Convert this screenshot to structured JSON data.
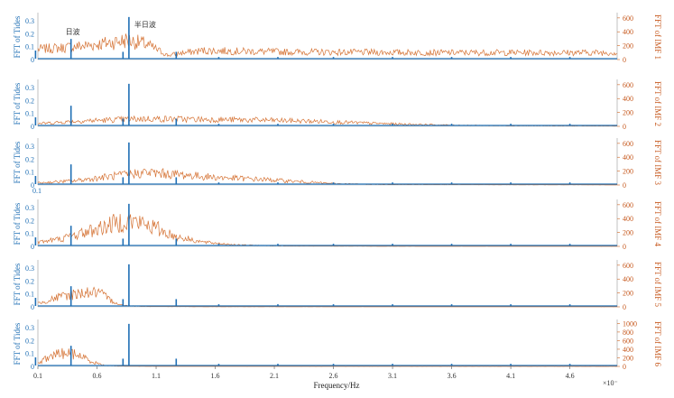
{
  "chart_data": {
    "type": "line",
    "xlabel": "Frequency/Hz",
    "x_scale_note": "×10⁻",
    "x_ticks": [
      "0.1",
      "0.6",
      "1.1",
      "1.6",
      "2.1",
      "2.6",
      "3.1",
      "3.6",
      "4.1",
      "4.6"
    ],
    "xlim": [
      0.1,
      5.0
    ],
    "extra_label": "0.1",
    "tide_peak_labels": [
      "日波",
      "半日波"
    ],
    "tide_series": {
      "name": "FFT of Tides",
      "peaks": [
        {
          "x": 0.08,
          "y": 0.07
        },
        {
          "x": 0.38,
          "y": 0.16
        },
        {
          "x": 0.82,
          "y": 0.06
        },
        {
          "x": 0.87,
          "y": 0.33
        },
        {
          "x": 1.27,
          "y": 0.06
        },
        {
          "x": 1.63,
          "y": 0.02
        },
        {
          "x": 2.13,
          "y": 0.02
        },
        {
          "x": 2.6,
          "y": 0.02
        },
        {
          "x": 3.1,
          "y": 0.02
        },
        {
          "x": 3.6,
          "y": 0.02
        },
        {
          "x": 4.1,
          "y": 0.02
        },
        {
          "x": 4.6,
          "y": 0.02
        }
      ]
    },
    "panels": [
      {
        "left_label": "FFT of Tides",
        "right_label": "FFT of IMF 1",
        "left_ticks": [
          "0.3",
          "0.2",
          "0.1",
          "0"
        ],
        "right_ticks": [
          "600",
          "400",
          "200",
          "0"
        ],
        "rmax": 650,
        "imf_shape": [
          [
            0.1,
            150
          ],
          [
            0.3,
            170
          ],
          [
            0.5,
            200
          ],
          [
            0.7,
            240
          ],
          [
            0.85,
            280
          ],
          [
            1.0,
            230
          ],
          [
            1.1,
            150
          ],
          [
            1.2,
            60
          ],
          [
            1.3,
            90
          ],
          [
            1.5,
            130
          ],
          [
            1.8,
            120
          ],
          [
            2.2,
            110
          ],
          [
            2.8,
            105
          ],
          [
            3.5,
            100
          ],
          [
            4.2,
            100
          ],
          [
            5.0,
            100
          ]
        ]
      },
      {
        "left_label": "FFT of Tides",
        "right_label": "FFT of IMF 2",
        "left_ticks": [
          "0.3",
          "0.2",
          "0.1",
          "0"
        ],
        "right_ticks": [
          "600",
          "400",
          "200",
          "0"
        ],
        "rmax": 650,
        "imf_shape": [
          [
            0.1,
            40
          ],
          [
            0.5,
            80
          ],
          [
            1.0,
            110
          ],
          [
            1.5,
            100
          ],
          [
            2.0,
            90
          ],
          [
            2.5,
            70
          ],
          [
            3.0,
            40
          ],
          [
            3.5,
            20
          ],
          [
            4.0,
            10
          ],
          [
            5.0,
            5
          ]
        ]
      },
      {
        "left_label": "FFT of Tides",
        "right_label": "FFT of IMF 3",
        "left_ticks": [
          "0.3",
          "0.2",
          "0.1",
          "0"
        ],
        "right_ticks": [
          "600",
          "400",
          "200",
          "0"
        ],
        "rmax": 650,
        "imf_shape": [
          [
            0.1,
            30
          ],
          [
            0.4,
            60
          ],
          [
            0.7,
            120
          ],
          [
            1.0,
            180
          ],
          [
            1.3,
            150
          ],
          [
            1.6,
            110
          ],
          [
            2.0,
            80
          ],
          [
            2.3,
            50
          ],
          [
            2.6,
            20
          ],
          [
            3.0,
            8
          ],
          [
            4.0,
            4
          ],
          [
            5.0,
            2
          ]
        ]
      },
      {
        "left_label": "FFT of Tides",
        "right_label": "FFT of IMF 4",
        "left_ticks": [
          "0.3",
          "0.2",
          "0.1",
          "0"
        ],
        "right_ticks": [
          "600",
          "400",
          "200",
          "0"
        ],
        "rmax": 650,
        "imf_shape": [
          [
            0.1,
            60
          ],
          [
            0.3,
            110
          ],
          [
            0.6,
            250
          ],
          [
            0.85,
            380
          ],
          [
            1.05,
            300
          ],
          [
            1.25,
            150
          ],
          [
            1.5,
            60
          ],
          [
            1.8,
            20
          ],
          [
            2.2,
            6
          ],
          [
            3.0,
            2
          ],
          [
            5.0,
            1
          ]
        ]
      },
      {
        "left_label": "FFT of Tides",
        "right_label": "FFT of IMF 5",
        "left_ticks": [
          "0.3",
          "0.2",
          "0.1",
          "0"
        ],
        "right_ticks": [
          "600",
          "400",
          "200",
          "0"
        ],
        "rmax": 650,
        "imf_shape": [
          [
            0.1,
            50
          ],
          [
            0.3,
            150
          ],
          [
            0.5,
            210
          ],
          [
            0.62,
            200
          ],
          [
            0.72,
            90
          ],
          [
            0.82,
            20
          ],
          [
            1.0,
            6
          ],
          [
            1.5,
            2
          ],
          [
            5.0,
            1
          ]
        ]
      },
      {
        "left_label": "FFT of Tides",
        "right_label": "FFT of IMF 6",
        "left_ticks": [
          "0.3",
          "0.2",
          "0.1",
          "0"
        ],
        "right_ticks": [
          "1000",
          "800",
          "600",
          "400",
          "200",
          "0"
        ],
        "rmax": 1050,
        "imf_shape": [
          [
            0.1,
            80
          ],
          [
            0.22,
            250
          ],
          [
            0.33,
            320
          ],
          [
            0.45,
            260
          ],
          [
            0.55,
            120
          ],
          [
            0.65,
            30
          ],
          [
            0.8,
            6
          ],
          [
            1.2,
            2
          ],
          [
            5.0,
            1
          ]
        ]
      }
    ]
  }
}
